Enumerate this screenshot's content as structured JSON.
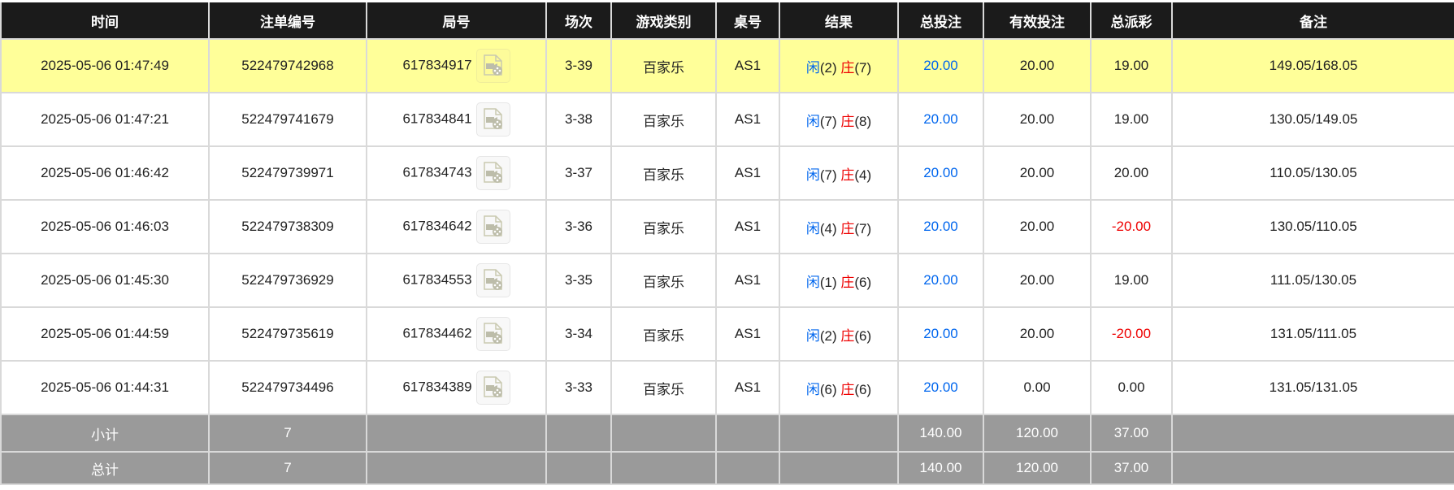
{
  "headers": [
    "时间",
    "注单编号",
    "局号",
    "场次",
    "游戏类别",
    "桌号",
    "结果",
    "总投注",
    "有效投注",
    "总派彩",
    "备注"
  ],
  "rows": [
    {
      "time": "2025-05-06 01:47:49",
      "order": "522479742968",
      "round": "617834917",
      "session": "3-39",
      "game": "百家乐",
      "table": "AS1",
      "player_label": "闲",
      "player": "(2)",
      "banker_label": "庄",
      "banker": "(7)",
      "bet": "20.00",
      "valid": "20.00",
      "payout": "19.00",
      "payout_neg": false,
      "note": "149.05/168.05",
      "highlight": true
    },
    {
      "time": "2025-05-06 01:47:21",
      "order": "522479741679",
      "round": "617834841",
      "session": "3-38",
      "game": "百家乐",
      "table": "AS1",
      "player_label": "闲",
      "player": "(7)",
      "banker_label": "庄",
      "banker": "(8)",
      "bet": "20.00",
      "valid": "20.00",
      "payout": "19.00",
      "payout_neg": false,
      "note": "130.05/149.05"
    },
    {
      "time": "2025-05-06 01:46:42",
      "order": "522479739971",
      "round": "617834743",
      "session": "3-37",
      "game": "百家乐",
      "table": "AS1",
      "player_label": "闲",
      "player": "(7)",
      "banker_label": "庄",
      "banker": "(4)",
      "bet": "20.00",
      "valid": "20.00",
      "payout": "20.00",
      "payout_neg": false,
      "note": "110.05/130.05"
    },
    {
      "time": "2025-05-06 01:46:03",
      "order": "522479738309",
      "round": "617834642",
      "session": "3-36",
      "game": "百家乐",
      "table": "AS1",
      "player_label": "闲",
      "player": "(4)",
      "banker_label": "庄",
      "banker": "(7)",
      "bet": "20.00",
      "valid": "20.00",
      "payout": "-20.00",
      "payout_neg": true,
      "note": "130.05/110.05"
    },
    {
      "time": "2025-05-06 01:45:30",
      "order": "522479736929",
      "round": "617834553",
      "session": "3-35",
      "game": "百家乐",
      "table": "AS1",
      "player_label": "闲",
      "player": "(1)",
      "banker_label": "庄",
      "banker": "(6)",
      "bet": "20.00",
      "valid": "20.00",
      "payout": "19.00",
      "payout_neg": false,
      "note": "111.05/130.05"
    },
    {
      "time": "2025-05-06 01:44:59",
      "order": "522479735619",
      "round": "617834462",
      "session": "3-34",
      "game": "百家乐",
      "table": "AS1",
      "player_label": "闲",
      "player": "(2)",
      "banker_label": "庄",
      "banker": "(6)",
      "bet": "20.00",
      "valid": "20.00",
      "payout": "-20.00",
      "payout_neg": true,
      "note": "131.05/111.05"
    },
    {
      "time": "2025-05-06 01:44:31",
      "order": "522479734496",
      "round": "617834389",
      "session": "3-33",
      "game": "百家乐",
      "table": "AS1",
      "player_label": "闲",
      "player": "(6)",
      "banker_label": "庄",
      "banker": "(6)",
      "bet": "20.00",
      "valid": "0.00",
      "payout": "0.00",
      "payout_neg": false,
      "note": "131.05/131.05"
    }
  ],
  "subtotal": {
    "label": "小计",
    "count": "7",
    "bet": "140.00",
    "valid": "120.00",
    "payout": "37.00"
  },
  "total": {
    "label": "总计",
    "count": "7",
    "bet": "140.00",
    "valid": "120.00",
    "payout": "37.00"
  },
  "icons": {
    "replay": "video-file-icon"
  },
  "colors": {
    "header": "#1b1b1b",
    "highlight": "#ffff99",
    "summary": "#9a9a9a",
    "player": "#0066ee",
    "banker": "#ee0000",
    "negative": "#ee0000",
    "bet": "#0066ee"
  }
}
